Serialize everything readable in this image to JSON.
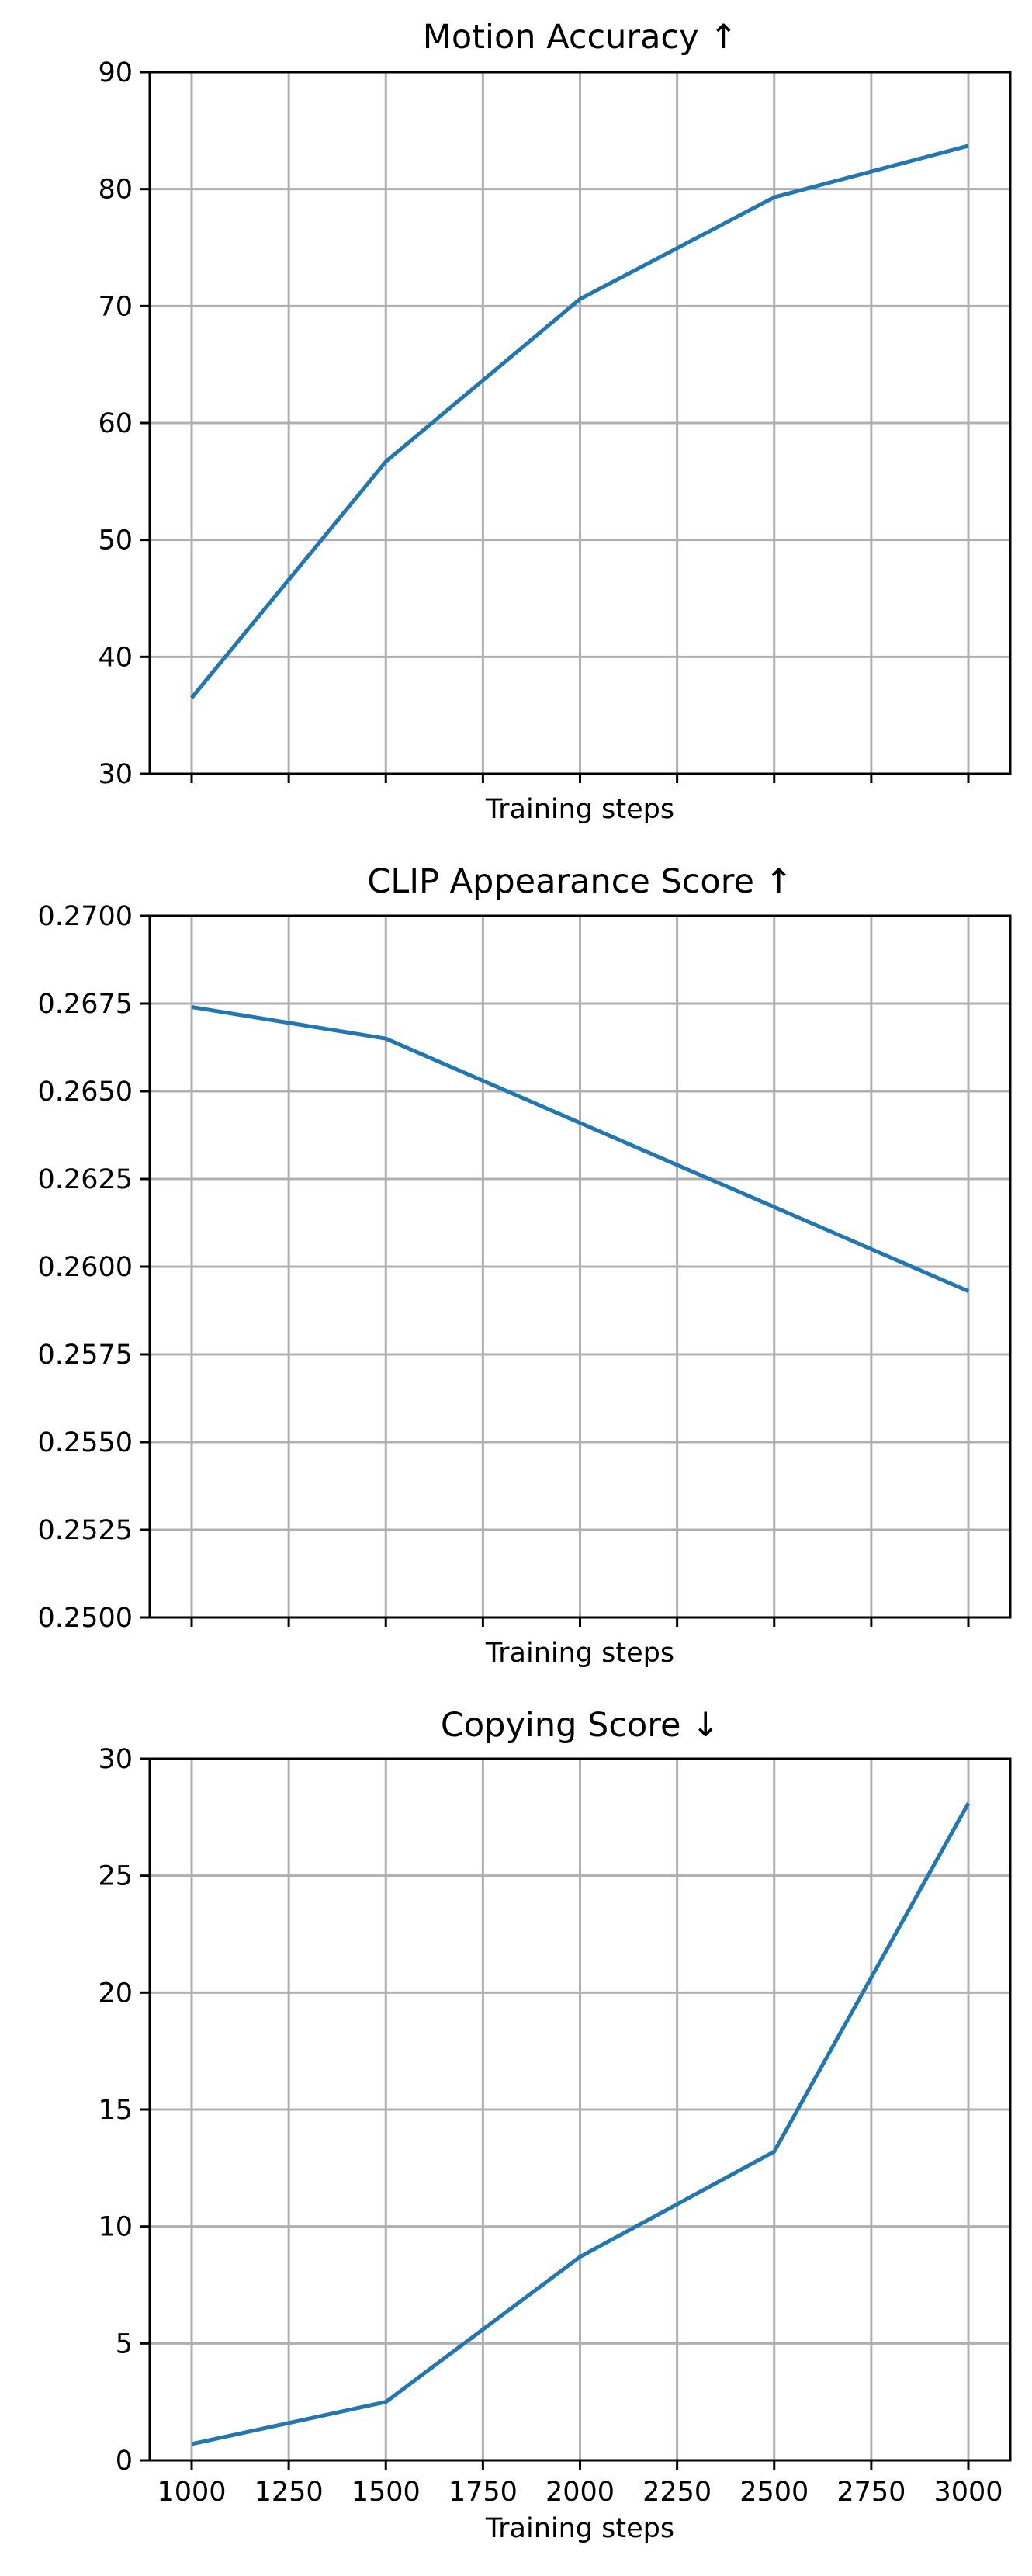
{
  "chart_data": [
    {
      "type": "line",
      "title": "Motion Accuracy ↑",
      "xlabel": "Training steps",
      "ylabel": "",
      "x": [
        1000,
        1500,
        2000,
        2500,
        3000
      ],
      "series": [
        {
          "values": [
            36.5,
            56.7,
            70.6,
            79.3,
            83.7
          ]
        }
      ],
      "xlim": [
        1000,
        3000
      ],
      "ylim": [
        30,
        90
      ],
      "xticks": [
        1000,
        1250,
        1500,
        1750,
        2000,
        2250,
        2500,
        2750,
        3000
      ],
      "xtick_labels_visible": false,
      "yticks": [
        30,
        40,
        50,
        60,
        70,
        80,
        90
      ],
      "ytick_labels": [
        "30",
        "40",
        "50",
        "60",
        "70",
        "80",
        "90"
      ],
      "grid": true,
      "color": "#1f77b4"
    },
    {
      "type": "line",
      "title": "CLIP Appearance Score ↑",
      "xlabel": "Training steps",
      "ylabel": "",
      "x": [
        1000,
        1500,
        2000,
        2500,
        3000
      ],
      "series": [
        {
          "values": [
            0.2674,
            0.2665,
            0.2641,
            0.2617,
            0.2593
          ]
        }
      ],
      "xlim": [
        1000,
        3000
      ],
      "ylim": [
        0.25,
        0.27
      ],
      "xticks": [
        1000,
        1250,
        1500,
        1750,
        2000,
        2250,
        2500,
        2750,
        3000
      ],
      "xtick_labels_visible": false,
      "yticks": [
        0.25,
        0.2525,
        0.255,
        0.2575,
        0.26,
        0.2625,
        0.265,
        0.2675,
        0.27
      ],
      "ytick_labels": [
        "0.2500",
        "0.2525",
        "0.2550",
        "0.2575",
        "0.2600",
        "0.2625",
        "0.2650",
        "0.2675",
        "0.2700"
      ],
      "grid": true,
      "color": "#1f77b4"
    },
    {
      "type": "line",
      "title": "Copying Score ↓",
      "xlabel": "Training steps",
      "ylabel": "",
      "x": [
        1000,
        1500,
        2000,
        2500,
        3000
      ],
      "series": [
        {
          "values": [
            0.7,
            2.5,
            8.7,
            13.2,
            28.1
          ]
        }
      ],
      "xlim": [
        1000,
        3000
      ],
      "ylim": [
        0,
        30
      ],
      "xticks": [
        1000,
        1250,
        1500,
        1750,
        2000,
        2250,
        2500,
        2750,
        3000
      ],
      "xtick_labels": [
        "1000",
        "1250",
        "1500",
        "1750",
        "2000",
        "2250",
        "2500",
        "2750",
        "3000"
      ],
      "xtick_labels_visible": true,
      "yticks": [
        0,
        5,
        10,
        15,
        20,
        25,
        30
      ],
      "ytick_labels": [
        "0",
        "5",
        "10",
        "15",
        "20",
        "25",
        "30"
      ],
      "grid": true,
      "color": "#1f77b4"
    }
  ]
}
